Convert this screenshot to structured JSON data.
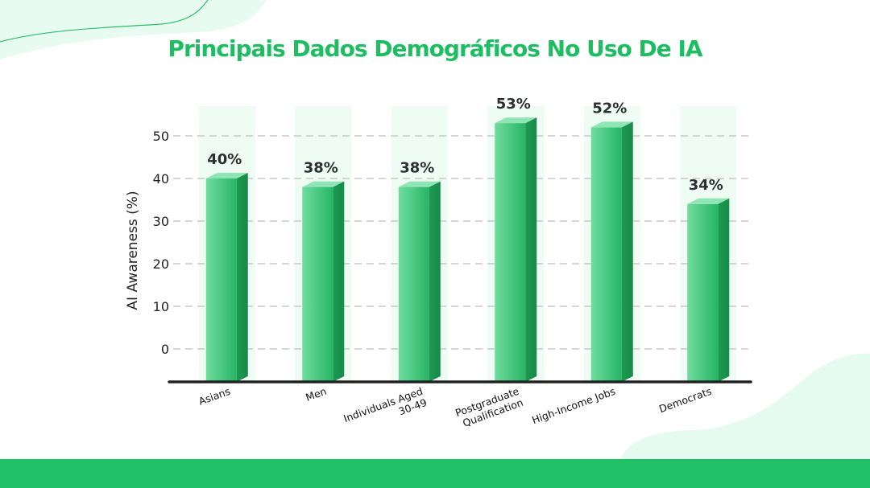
{
  "title": "Principais Dados Demográficos No Uso De IA",
  "colors": {
    "title": "#1ebd62",
    "bar_front_light": "#6fdc9e",
    "bar_front_dark": "#27b566",
    "bar_side": "#1c9a52",
    "bar_top": "#8fe6b4",
    "column_band": "#eefcf3",
    "grid": "#c8c8c8",
    "axis": "#222222",
    "footer": "#20c167",
    "blob": "#e6fbf0"
  },
  "chart_data": {
    "type": "bar",
    "title": "Principais Dados Demográficos No Uso De IA",
    "xlabel": "",
    "ylabel": "AI Awareness (%)",
    "categories": [
      "Asians",
      "Men",
      "Individuals Aged\n30-49",
      "Postgraduate\nQualification",
      "High-Income Jobs",
      "Democrats"
    ],
    "values": [
      40,
      38,
      38,
      53,
      52,
      34
    ],
    "data_labels": [
      "40%",
      "38%",
      "38%",
      "53%",
      "52%",
      "34%"
    ],
    "yticks": [
      0,
      10,
      20,
      30,
      40,
      50
    ],
    "ylim": [
      -7,
      60
    ],
    "grid": true,
    "legend": "none"
  }
}
